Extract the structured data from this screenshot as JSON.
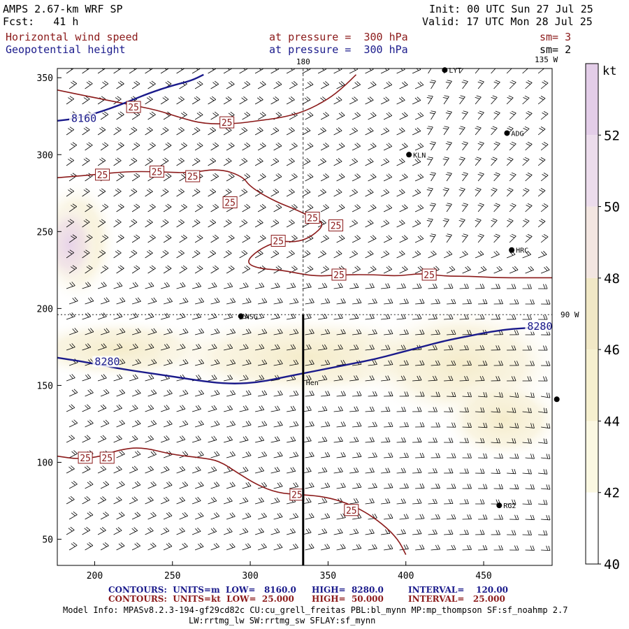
{
  "header": {
    "model": "AMPS 2.67-km WRF SP",
    "fcst": "Fcst:   41 h",
    "init": "Init: 00 UTC Sun 27 Jul 25",
    "valid": "Valid: 17 UTC Mon 28 Jul 25",
    "field1_name": "Horizontal wind speed",
    "field1_level": "at pressure =  300 hPa",
    "field1_sm": "sm= 3",
    "field2_name": "Geopotential height",
    "field2_level": "at pressure =  300 hPa",
    "field2_sm": "sm= 2"
  },
  "map_labels": {
    "lon_180": "180",
    "lon_135w": "135 W",
    "lon_90w": "90 W",
    "stations": [
      {
        "name": "LYT",
        "x": 425,
        "y": 355
      },
      {
        "name": "ADG",
        "x": 465,
        "y": 314
      },
      {
        "name": "KLN",
        "x": 402,
        "y": 300
      },
      {
        "name": "HRC",
        "x": 468,
        "y": 238
      },
      {
        "name": "NSG",
        "x": 294,
        "y": 195
      },
      {
        "name": "RG2",
        "x": 460,
        "y": 72
      },
      {
        "name": "",
        "x": 497,
        "y": 141
      }
    ],
    "cross_section_label": "Hen"
  },
  "colorbar": {
    "unit": "kt",
    "ticks": [
      "52",
      "50",
      "48",
      "46",
      "44",
      "42",
      "40"
    ],
    "colors": [
      "#ffffff",
      "#fbf8e2",
      "#f6f0cf",
      "#f1e8c6",
      "#f3e6e1",
      "#ecdcec",
      "#e3cde8"
    ]
  },
  "footer": {
    "line1_label": "CONTOURS:  UNITS=m  LOW=   8160.0",
    "line1_high": "HIGH=  8280.0",
    "line1_interval": "INTERVAL=    120.00",
    "line2_label": "CONTOURS:  UNITS=kt  LOW=  25.000",
    "line2_high": "HIGH=  50.000",
    "line2_interval": "INTERVAL=   25.000",
    "model_info": "Model Info: MPASv8.2.3-194-gf29cd82c CU:cu_grell_freitas PBL:bl_mynn MP:mp_thompson SF:sf_noahmp 2.7",
    "model_info2": "LW:rrtmg_lw SW:rrtmg_sw SFLAY:sf_mynn"
  },
  "chart_data": {
    "type": "contour",
    "title": "Horizontal wind speed at pressure = 300 hPa; Geopotential height at pressure = 300 hPa",
    "xlim": [
      176,
      494
    ],
    "ylim": [
      33,
      356
    ],
    "x_ticks": [
      200,
      250,
      300,
      350,
      400,
      450
    ],
    "y_ticks": [
      50,
      100,
      150,
      200,
      250,
      300,
      350
    ],
    "height_contours": [
      {
        "level": 8160,
        "label": "8160",
        "points": [
          [
            176,
            322
          ],
          [
            185,
            323
          ],
          [
            198,
            326
          ],
          [
            210,
            330
          ],
          [
            223,
            335
          ],
          [
            235,
            340
          ],
          [
            250,
            345
          ],
          [
            262,
            348
          ],
          [
            270,
            352
          ]
        ]
      },
      {
        "level": 8280,
        "label": "8280",
        "points": [
          [
            176,
            168
          ],
          [
            195,
            165
          ],
          [
            215,
            161
          ],
          [
            235,
            158
          ],
          [
            255,
            155
          ],
          [
            275,
            152
          ],
          [
            290,
            151
          ],
          [
            305,
            152
          ],
          [
            320,
            155
          ],
          [
            335,
            158
          ],
          [
            350,
            161
          ],
          [
            365,
            164
          ],
          [
            380,
            167
          ],
          [
            395,
            171
          ],
          [
            410,
            175
          ],
          [
            425,
            179
          ],
          [
            440,
            182
          ],
          [
            455,
            185
          ],
          [
            470,
            187
          ],
          [
            494,
            188
          ]
        ]
      }
    ],
    "wind_contours": [
      {
        "level": 25,
        "label": "25",
        "points": [
          [
            176,
            285
          ],
          [
            200,
            287
          ],
          [
            220,
            289
          ],
          [
            240,
            289
          ],
          [
            260,
            288
          ],
          [
            280,
            291
          ],
          [
            295,
            286
          ],
          [
            300,
            279
          ],
          [
            315,
            270
          ],
          [
            330,
            264
          ],
          [
            340,
            259
          ],
          [
            348,
            255
          ],
          [
            340,
            247
          ],
          [
            330,
            243
          ],
          [
            318,
            244
          ],
          [
            305,
            238
          ],
          [
            297,
            230
          ],
          [
            305,
            226
          ],
          [
            320,
            225
          ],
          [
            335,
            222
          ],
          [
            345,
            221
          ],
          [
            360,
            222
          ],
          [
            380,
            222
          ],
          [
            395,
            221
          ],
          [
            410,
            223
          ],
          [
            425,
            221
          ],
          [
            440,
            221
          ],
          [
            460,
            220
          ],
          [
            475,
            220
          ],
          [
            494,
            220
          ]
        ]
      },
      {
        "level": 25,
        "label": "25",
        "points": [
          [
            176,
            342
          ],
          [
            200,
            337
          ],
          [
            220,
            333
          ],
          [
            240,
            329
          ],
          [
            255,
            324
          ],
          [
            270,
            320
          ],
          [
            290,
            320
          ],
          [
            305,
            322
          ],
          [
            320,
            324
          ],
          [
            335,
            328
          ],
          [
            350,
            336
          ],
          [
            360,
            344
          ],
          [
            368,
            352
          ]
        ]
      },
      {
        "level": 25,
        "label": "25",
        "points": [
          [
            176,
            104
          ],
          [
            190,
            102
          ],
          [
            205,
            104
          ],
          [
            215,
            108
          ],
          [
            230,
            110
          ],
          [
            250,
            105
          ],
          [
            268,
            103
          ],
          [
            280,
            101
          ],
          [
            292,
            93
          ],
          [
            305,
            85
          ],
          [
            318,
            80
          ],
          [
            332,
            79
          ],
          [
            345,
            78
          ],
          [
            358,
            75
          ],
          [
            372,
            69
          ],
          [
            385,
            60
          ],
          [
            395,
            50
          ],
          [
            400,
            40
          ]
        ]
      }
    ],
    "wind_speed_shading": [
      {
        "level": "44-46 kt",
        "region": "band along 8280 m contour"
      },
      {
        "level": "48-50 kt",
        "region": "near 176-195 x, 215-265 y"
      }
    ],
    "cross_section_x": 334
  }
}
